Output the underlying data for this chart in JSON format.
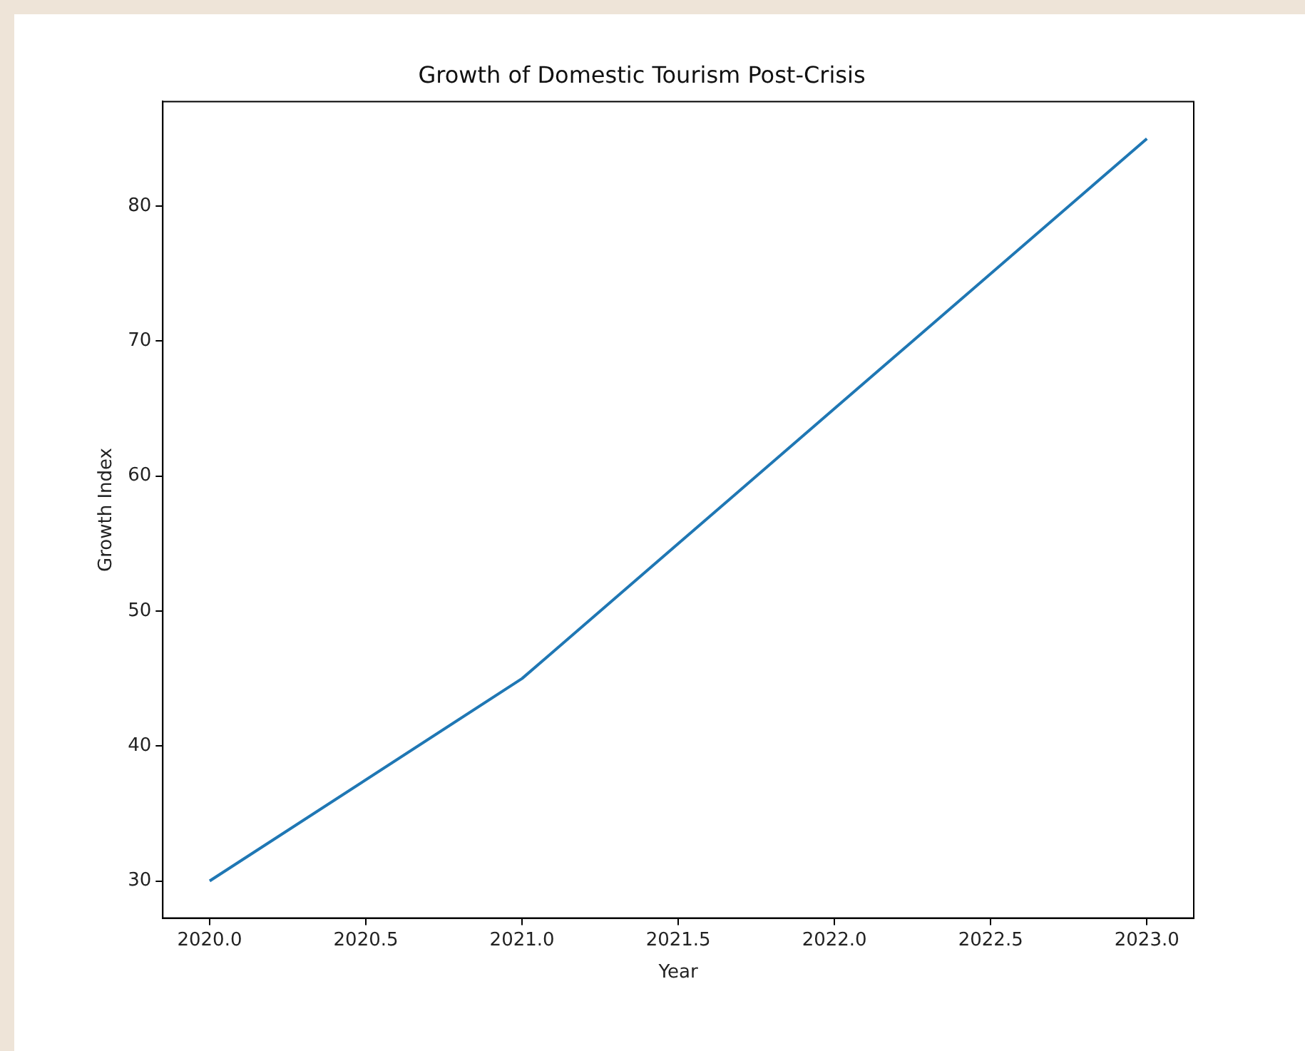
{
  "chart_data": {
    "type": "line",
    "title": "Growth of Domestic Tourism Post-Crisis",
    "xlabel": "Year",
    "ylabel": "Growth Index",
    "x": [
      2020,
      2021,
      2022,
      2023
    ],
    "series": [
      {
        "color": "#1f77b4",
        "values": [
          30,
          45,
          65,
          85
        ]
      }
    ],
    "xlim": [
      2019.85,
      2023.15
    ],
    "xticks": [
      {
        "value": 2020,
        "label": "2020.0"
      },
      {
        "value": 2020.5,
        "label": "2020.5"
      },
      {
        "value": 2021,
        "label": "2021.0"
      },
      {
        "value": 2021.5,
        "label": "2021.5"
      },
      {
        "value": 2022,
        "label": "2022.0"
      },
      {
        "value": 2022.5,
        "label": "2022.5"
      },
      {
        "value": 2023,
        "label": "2023.0"
      }
    ],
    "ylim": [
      27.25,
      87.75
    ],
    "yticks": [
      30,
      40,
      50,
      60,
      70,
      80
    ],
    "grid": false,
    "legend": false,
    "marker": "none",
    "line_style": "solid"
  }
}
